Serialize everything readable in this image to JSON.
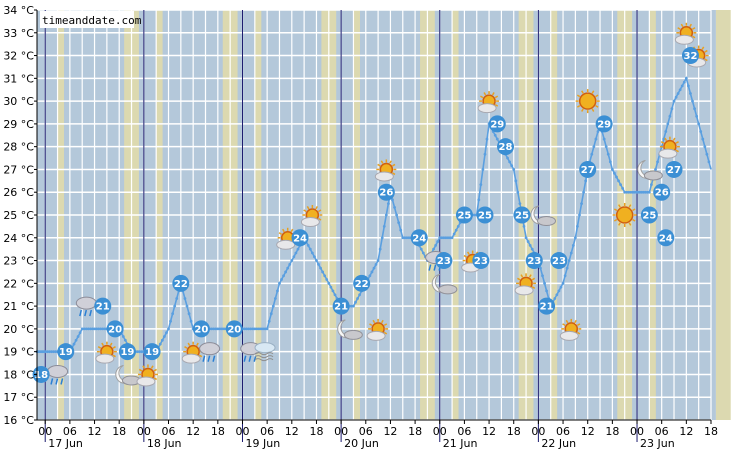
{
  "brand": "timeanddate.com",
  "colors": {
    "night": "#b4c8da",
    "twilight": "#dcd9b0",
    "grid": "#ffffff",
    "line": "#5a9fe0",
    "bubble": "#3b8fd4"
  },
  "chart_data": {
    "type": "line",
    "title": "",
    "ylabel": "",
    "xlabel": "",
    "y_unit": "°C",
    "ylim": [
      16,
      34
    ],
    "y_ticks": [
      "16 °C",
      "17 °C",
      "18 °C",
      "19 °C",
      "20 °C",
      "21 °C",
      "22 °C",
      "23 °C",
      "24 °C",
      "25 °C",
      "26 °C",
      "27 °C",
      "28 °C",
      "29 °C",
      "30 °C",
      "31 °C",
      "32 °C",
      "33 °C",
      "34 °C"
    ],
    "x_hour_ticks": [
      "00",
      "06",
      "12",
      "18"
    ],
    "days": [
      "17 Jun",
      "18 Jun",
      "19 Jun",
      "20 Jun",
      "21 Jun",
      "22 Jun",
      "23 Jun"
    ],
    "x_unit": "hours since 17 Jun 00:00",
    "xlim": [
      -2,
      162
    ],
    "series": [
      {
        "values": [
          [
            -2,
            19
          ],
          [
            0,
            19
          ],
          [
            3,
            19
          ],
          [
            6,
            19
          ],
          [
            9,
            20
          ],
          [
            12,
            20
          ],
          [
            15,
            20
          ],
          [
            18,
            20
          ],
          [
            21,
            19
          ],
          [
            24,
            19
          ],
          [
            27,
            19
          ],
          [
            30,
            20
          ],
          [
            33,
            22
          ],
          [
            36,
            20
          ],
          [
            39,
            20
          ],
          [
            42,
            20
          ],
          [
            45,
            20
          ],
          [
            48,
            20
          ],
          [
            51,
            20
          ],
          [
            54,
            20
          ],
          [
            57,
            22
          ],
          [
            60,
            23
          ],
          [
            63,
            24
          ],
          [
            66,
            23
          ],
          [
            69,
            22
          ],
          [
            72,
            21
          ],
          [
            75,
            21
          ],
          [
            78,
            22
          ],
          [
            81,
            23
          ],
          [
            84,
            26
          ],
          [
            87,
            24
          ],
          [
            90,
            24
          ],
          [
            93,
            23
          ],
          [
            96,
            24
          ],
          [
            99,
            24
          ],
          [
            102,
            25
          ],
          [
            105,
            25
          ],
          [
            108,
            29
          ],
          [
            111,
            28
          ],
          [
            114,
            27
          ],
          [
            117,
            24
          ],
          [
            120,
            23
          ],
          [
            123,
            21
          ],
          [
            126,
            22
          ],
          [
            129,
            24
          ],
          [
            132,
            27
          ],
          [
            135,
            29
          ],
          [
            138,
            27
          ],
          [
            141,
            26
          ],
          [
            144,
            26
          ],
          [
            147,
            26
          ],
          [
            150,
            28
          ],
          [
            153,
            30
          ],
          [
            156,
            31
          ],
          [
            159,
            29
          ],
          [
            162,
            27
          ]
        ]
      }
    ],
    "temperature_labels": [
      {
        "x": -1,
        "y": 18,
        "label": "18"
      },
      {
        "x": 5,
        "y": 19,
        "label": "19"
      },
      {
        "x": 14,
        "y": 21,
        "label": "21"
      },
      {
        "x": 17,
        "y": 20,
        "label": "20"
      },
      {
        "x": 20,
        "y": 19,
        "label": "19"
      },
      {
        "x": 26,
        "y": 19,
        "label": "19"
      },
      {
        "x": 33,
        "y": 22,
        "label": "22"
      },
      {
        "x": 38,
        "y": 20,
        "label": "20"
      },
      {
        "x": 46,
        "y": 20,
        "label": "20"
      },
      {
        "x": 62,
        "y": 24,
        "label": "24"
      },
      {
        "x": 72,
        "y": 21,
        "label": "21"
      },
      {
        "x": 77,
        "y": 22,
        "label": "22"
      },
      {
        "x": 83,
        "y": 26,
        "label": "26"
      },
      {
        "x": 91,
        "y": 24,
        "label": "24"
      },
      {
        "x": 97,
        "y": 23,
        "label": "23"
      },
      {
        "x": 102,
        "y": 25,
        "label": "25"
      },
      {
        "x": 106,
        "y": 23,
        "label": "23"
      },
      {
        "x": 107,
        "y": 25,
        "label": "25"
      },
      {
        "x": 110,
        "y": 29,
        "label": "29"
      },
      {
        "x": 112,
        "y": 28,
        "label": "28"
      },
      {
        "x": 116,
        "y": 25,
        "label": "25"
      },
      {
        "x": 119,
        "y": 23,
        "label": "23"
      },
      {
        "x": 122,
        "y": 21,
        "label": "21"
      },
      {
        "x": 125,
        "y": 23,
        "label": "23"
      },
      {
        "x": 132,
        "y": 27,
        "label": "27"
      },
      {
        "x": 136,
        "y": 29,
        "label": "29"
      },
      {
        "x": 147,
        "y": 25,
        "label": "25"
      },
      {
        "x": 150,
        "y": 26,
        "label": "26"
      },
      {
        "x": 151,
        "y": 24,
        "label": "24"
      },
      {
        "x": 153,
        "y": 27,
        "label": "27"
      },
      {
        "x": 157,
        "y": 32,
        "label": "32"
      }
    ],
    "weather_icons": [
      {
        "x": 3,
        "y": 18,
        "icon": "showers-icon"
      },
      {
        "x": 10,
        "y": 21,
        "icon": "rain-icon"
      },
      {
        "x": 15,
        "y": 19,
        "icon": "partly-sunny-icon"
      },
      {
        "x": 20,
        "y": 18,
        "icon": "moon-cloud-icon"
      },
      {
        "x": 25,
        "y": 18,
        "icon": "partly-sunny-icon"
      },
      {
        "x": 36,
        "y": 19,
        "icon": "partly-sunny-icon"
      },
      {
        "x": 40,
        "y": 19,
        "icon": "rain-icon"
      },
      {
        "x": 50,
        "y": 19,
        "icon": "rain-icon"
      },
      {
        "x": 53,
        "y": 19,
        "icon": "fog-icon"
      },
      {
        "x": 59,
        "y": 24,
        "icon": "partly-sunny-icon"
      },
      {
        "x": 65,
        "y": 25,
        "icon": "partly-sunny-icon"
      },
      {
        "x": 74,
        "y": 20,
        "icon": "moon-cloud-icon"
      },
      {
        "x": 81,
        "y": 20,
        "icon": "partly-sunny-icon"
      },
      {
        "x": 83,
        "y": 27,
        "icon": "partly-sunny-icon"
      },
      {
        "x": 95,
        "y": 23,
        "icon": "rain-icon"
      },
      {
        "x": 97,
        "y": 22,
        "icon": "moon-cloud-icon"
      },
      {
        "x": 104,
        "y": 23,
        "icon": "partly-sunny-icon"
      },
      {
        "x": 108,
        "y": 30,
        "icon": "partly-sunny-icon"
      },
      {
        "x": 117,
        "y": 22,
        "icon": "partly-sunny-icon"
      },
      {
        "x": 121,
        "y": 25,
        "icon": "moon-cloud-icon"
      },
      {
        "x": 128,
        "y": 20,
        "icon": "partly-sunny-icon"
      },
      {
        "x": 132,
        "y": 30,
        "icon": "sun-icon"
      },
      {
        "x": 141,
        "y": 25,
        "icon": "sun-icon"
      },
      {
        "x": 147,
        "y": 27,
        "icon": "moon-cloud-icon"
      },
      {
        "x": 152,
        "y": 28,
        "icon": "partly-sunny-icon"
      },
      {
        "x": 156,
        "y": 33,
        "icon": "partly-sunny-icon"
      },
      {
        "x": 159,
        "y": 32,
        "icon": "partly-sunny-icon"
      }
    ],
    "grid": true
  }
}
